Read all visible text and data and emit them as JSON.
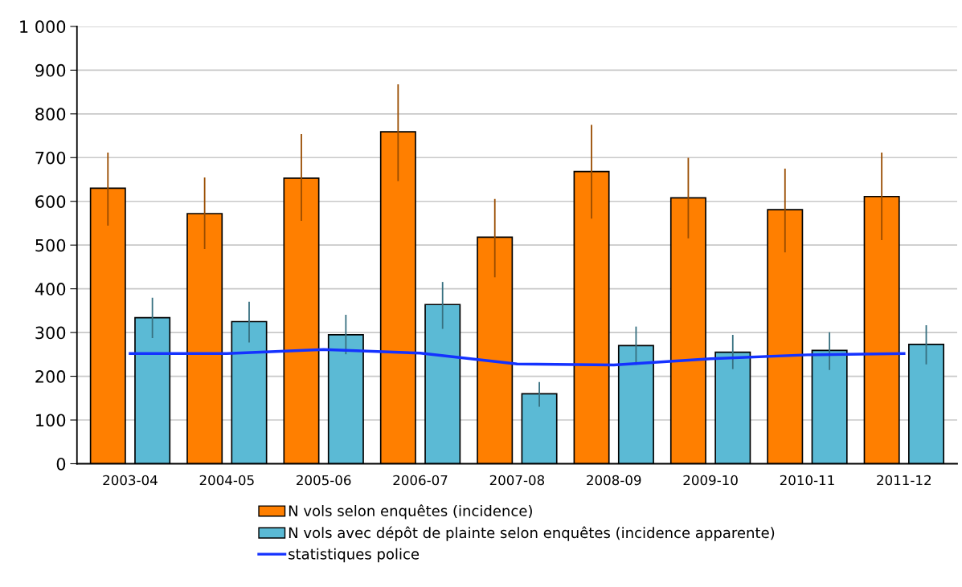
{
  "chart_data": {
    "type": "bar",
    "categories": [
      "2003-04",
      "2004-05",
      "2005-06",
      "2006-07",
      "2007-08",
      "2008-09",
      "2009-10",
      "2010-11",
      "2011-12"
    ],
    "series": [
      {
        "name": "N vols selon enquêtes (incidence)",
        "color": "#ff7f00",
        "values": [
          630,
          572,
          653,
          759,
          518,
          668,
          608,
          581,
          611
        ],
        "errors": [
          [
            546,
            710
          ],
          [
            493,
            653
          ],
          [
            557,
            752
          ],
          [
            648,
            866
          ],
          [
            428,
            604
          ],
          [
            562,
            773
          ],
          [
            517,
            698
          ],
          [
            485,
            673
          ],
          [
            513,
            710
          ]
        ]
      },
      {
        "name": "N vols avec dépôt de plainte selon enquêtes (incidence apparente)",
        "color": "#5bbad5",
        "values": [
          334,
          325,
          295,
          364,
          160,
          270,
          255,
          259,
          273
        ],
        "errors": [
          [
            289,
            378
          ],
          [
            279,
            369
          ],
          [
            252,
            339
          ],
          [
            310,
            414
          ],
          [
            132,
            185
          ],
          [
            228,
            312
          ],
          [
            218,
            293
          ],
          [
            216,
            299
          ],
          [
            229,
            315
          ]
        ]
      },
      {
        "name": "statistiques police",
        "type": "line",
        "color": "#1432ff",
        "values": [
          252,
          252,
          261,
          253,
          228,
          226,
          240,
          249,
          252
        ]
      }
    ],
    "ylim": [
      0,
      1000
    ],
    "yticks": [
      0,
      100,
      200,
      300,
      400,
      500,
      600,
      700,
      800,
      900,
      {
        "value": 1000,
        "label": "1 000"
      }
    ],
    "grid": "y",
    "legend": "bottom"
  }
}
